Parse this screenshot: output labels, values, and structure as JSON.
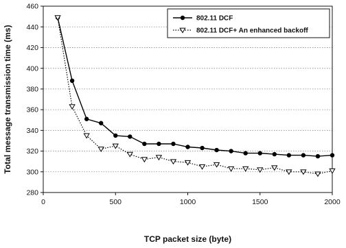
{
  "chart_data": {
    "type": "line",
    "title": "",
    "xlabel": "TCP packet size (byte)",
    "ylabel": "Total message transmission time (ms)",
    "xlim": [
      0,
      2000
    ],
    "ylim": [
      280,
      460
    ],
    "xticks": [
      0,
      500,
      1000,
      1500,
      2000
    ],
    "yticks": [
      280,
      300,
      320,
      340,
      360,
      380,
      400,
      420,
      440,
      460
    ],
    "grid": "horizontal dotted",
    "legend_position": "top-right",
    "series": [
      {
        "name": "802.11 DCF",
        "marker": "filled-circle",
        "line": "solid",
        "color": "#000000",
        "x": [
          100,
          200,
          300,
          400,
          500,
          600,
          700,
          800,
          900,
          1000,
          1100,
          1200,
          1300,
          1400,
          1500,
          1600,
          1700,
          1800,
          1900,
          2000
        ],
        "y": [
          449,
          388,
          351,
          347,
          335,
          334,
          327,
          327,
          327,
          324,
          323,
          321,
          320,
          318,
          318,
          317,
          316,
          316,
          315,
          316
        ]
      },
      {
        "name": "802.11 DCF+ An enhanced backoff",
        "marker": "hollow-triangle-down",
        "line": "dotted",
        "color": "#000000",
        "x": [
          100,
          200,
          300,
          400,
          500,
          600,
          700,
          800,
          900,
          1000,
          1100,
          1200,
          1300,
          1400,
          1500,
          1600,
          1700,
          1800,
          1900,
          2000
        ],
        "y": [
          449,
          363,
          335,
          322,
          325,
          317,
          312,
          314,
          310,
          309,
          305,
          307,
          303,
          303,
          302,
          304,
          300,
          300,
          298,
          301
        ]
      }
    ]
  }
}
